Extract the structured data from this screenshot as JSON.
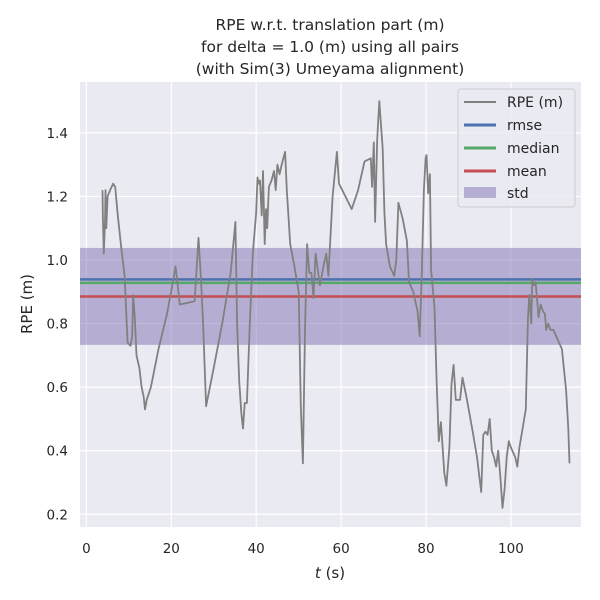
{
  "chart_data": {
    "type": "line",
    "title": [
      "RPE w.r.t. translation part (m)",
      "for delta = 1.0 (m) using all pairs",
      "(with Sim(3) Umeyama alignment)"
    ],
    "xlabel_italic": "t",
    "xlabel_suffix": " (s)",
    "ylabel": "RPE (m)",
    "xlim": [
      -1.5,
      116.5
    ],
    "ylim": [
      0.16,
      1.56
    ],
    "xticks": [
      0,
      20,
      40,
      60,
      80,
      100
    ],
    "yticks": [
      0.2,
      0.4,
      0.6,
      0.8,
      1.0,
      1.2,
      1.4
    ],
    "ytick_labels": [
      "0.2",
      "0.4",
      "0.6",
      "0.8",
      "1.0",
      "1.2",
      "1.4"
    ],
    "series": [
      {
        "name": "RPE (m)",
        "color": "#808080",
        "points": [
          [
            3.8,
            1.22
          ],
          [
            3.9,
            1.13
          ],
          [
            4.1,
            1.02
          ],
          [
            4.4,
            1.12
          ],
          [
            4.5,
            1.22
          ],
          [
            4.7,
            1.1
          ],
          [
            5.0,
            1.2
          ],
          [
            5.6,
            1.22
          ],
          [
            6.3,
            1.24
          ],
          [
            6.8,
            1.23
          ],
          [
            7.4,
            1.14
          ],
          [
            8.2,
            1.04
          ],
          [
            9.0,
            0.95
          ],
          [
            9.7,
            0.74
          ],
          [
            10.4,
            0.73
          ],
          [
            10.8,
            0.76
          ],
          [
            11.0,
            0.89
          ],
          [
            11.4,
            0.82
          ],
          [
            11.8,
            0.7
          ],
          [
            12.5,
            0.66
          ],
          [
            13.0,
            0.6
          ],
          [
            13.5,
            0.57
          ],
          [
            13.8,
            0.53
          ],
          [
            14.2,
            0.56
          ],
          [
            15.2,
            0.6
          ],
          [
            17.0,
            0.72
          ],
          [
            19.0,
            0.83
          ],
          [
            20.5,
            0.94
          ],
          [
            21.0,
            0.98
          ],
          [
            21.6,
            0.91
          ],
          [
            22.0,
            0.86
          ],
          [
            25.5,
            0.87
          ],
          [
            26.4,
            1.07
          ],
          [
            27.0,
            0.94
          ],
          [
            27.5,
            0.8
          ],
          [
            28.2,
            0.54
          ],
          [
            30.0,
            0.66
          ],
          [
            32.0,
            0.8
          ],
          [
            34.0,
            0.96
          ],
          [
            35.1,
            1.12
          ],
          [
            35.5,
            0.8
          ],
          [
            36.0,
            0.62
          ],
          [
            36.5,
            0.52
          ],
          [
            36.9,
            0.47
          ],
          [
            37.3,
            0.55
          ],
          [
            37.8,
            0.55
          ],
          [
            38.5,
            0.8
          ],
          [
            39.2,
            1.02
          ],
          [
            40.0,
            1.15
          ],
          [
            40.3,
            1.26
          ],
          [
            40.6,
            1.24
          ],
          [
            40.9,
            1.25
          ],
          [
            41.3,
            1.14
          ],
          [
            41.6,
            1.28
          ],
          [
            42.0,
            1.05
          ],
          [
            42.3,
            1.16
          ],
          [
            42.6,
            1.1
          ],
          [
            43.0,
            1.23
          ],
          [
            43.6,
            1.25
          ],
          [
            44.2,
            1.28
          ],
          [
            44.6,
            1.22
          ],
          [
            45.0,
            1.3
          ],
          [
            45.5,
            1.27
          ],
          [
            46.0,
            1.3
          ],
          [
            46.8,
            1.34
          ],
          [
            47.2,
            1.22
          ],
          [
            48.0,
            1.05
          ],
          [
            49.0,
            0.98
          ],
          [
            50.0,
            0.9
          ],
          [
            50.5,
            0.54
          ],
          [
            51.0,
            0.36
          ],
          [
            51.5,
            0.78
          ],
          [
            52.0,
            1.05
          ],
          [
            52.5,
            0.96
          ],
          [
            53.0,
            0.96
          ],
          [
            53.5,
            0.88
          ],
          [
            54.0,
            1.02
          ],
          [
            55.0,
            0.92
          ],
          [
            56.0,
            0.99
          ],
          [
            56.5,
            1.02
          ],
          [
            57.0,
            0.95
          ],
          [
            58.0,
            1.2
          ],
          [
            59.0,
            1.34
          ],
          [
            59.5,
            1.24
          ],
          [
            61.0,
            1.2
          ],
          [
            62.5,
            1.16
          ],
          [
            64.0,
            1.22
          ],
          [
            65.5,
            1.31
          ],
          [
            67.0,
            1.32
          ],
          [
            67.3,
            1.23
          ],
          [
            67.7,
            1.37
          ],
          [
            68.0,
            1.12
          ],
          [
            68.5,
            1.38
          ],
          [
            69.0,
            1.5
          ],
          [
            69.8,
            1.35
          ],
          [
            70.2,
            1.15
          ],
          [
            70.6,
            1.05
          ],
          [
            71.5,
            0.98
          ],
          [
            72.5,
            0.95
          ],
          [
            73.0,
            1.0
          ],
          [
            73.5,
            1.18
          ],
          [
            74.5,
            1.13
          ],
          [
            75.5,
            1.06
          ],
          [
            76.0,
            0.93
          ],
          [
            77.0,
            0.9
          ],
          [
            78.0,
            0.84
          ],
          [
            78.5,
            0.76
          ],
          [
            79.0,
            0.96
          ],
          [
            79.5,
            1.22
          ],
          [
            79.9,
            1.32
          ],
          [
            80.1,
            1.33
          ],
          [
            80.5,
            1.21
          ],
          [
            80.9,
            1.27
          ],
          [
            81.2,
            0.97
          ],
          [
            82.0,
            0.85
          ],
          [
            82.5,
            0.62
          ],
          [
            83.0,
            0.43
          ],
          [
            83.5,
            0.49
          ],
          [
            83.8,
            0.43
          ],
          [
            84.3,
            0.33
          ],
          [
            84.8,
            0.29
          ],
          [
            85.5,
            0.41
          ],
          [
            86.0,
            0.61
          ],
          [
            86.5,
            0.67
          ],
          [
            87.0,
            0.56
          ],
          [
            88.0,
            0.56
          ],
          [
            88.6,
            0.63
          ],
          [
            89.5,
            0.57
          ],
          [
            91.0,
            0.46
          ],
          [
            92.0,
            0.38
          ],
          [
            93.0,
            0.27
          ],
          [
            93.5,
            0.45
          ],
          [
            94.0,
            0.46
          ],
          [
            94.5,
            0.45
          ],
          [
            95.0,
            0.5
          ],
          [
            95.5,
            0.4
          ],
          [
            96.0,
            0.38
          ],
          [
            96.5,
            0.35
          ],
          [
            97.0,
            0.4
          ],
          [
            97.5,
            0.32
          ],
          [
            98.0,
            0.22
          ],
          [
            98.5,
            0.28
          ],
          [
            99.0,
            0.38
          ],
          [
            99.5,
            0.43
          ],
          [
            100.0,
            0.41
          ],
          [
            101.0,
            0.38
          ],
          [
            101.5,
            0.35
          ],
          [
            102.0,
            0.41
          ],
          [
            103.5,
            0.53
          ],
          [
            104.0,
            0.81
          ],
          [
            104.3,
            0.89
          ],
          [
            104.8,
            0.8
          ],
          [
            105.0,
            0.94
          ],
          [
            105.4,
            0.92
          ],
          [
            105.8,
            0.93
          ],
          [
            106.2,
            0.87
          ],
          [
            106.5,
            0.82
          ],
          [
            107.0,
            0.86
          ],
          [
            107.5,
            0.84
          ],
          [
            108.0,
            0.83
          ],
          [
            108.3,
            0.78
          ],
          [
            108.8,
            0.8
          ],
          [
            109.3,
            0.78
          ],
          [
            110.0,
            0.78
          ],
          [
            112.0,
            0.72
          ],
          [
            113.0,
            0.59
          ],
          [
            113.5,
            0.47
          ],
          [
            113.8,
            0.36
          ]
        ]
      }
    ],
    "stats": {
      "rmse": {
        "label": "rmse",
        "value": 0.939,
        "color": "#4c72b0"
      },
      "median": {
        "label": "median",
        "value": 0.928,
        "color": "#55a868"
      },
      "mean": {
        "label": "mean",
        "value": 0.885,
        "color": "#c44e52"
      },
      "std": {
        "label": "std",
        "range": [
          0.733,
          1.038
        ],
        "color": "#8172b2"
      }
    },
    "legend_position": "top-right",
    "legend_order": [
      "RPE (m)",
      "rmse",
      "median",
      "mean",
      "std"
    ],
    "grid": true,
    "background": "#eaeaf2"
  }
}
